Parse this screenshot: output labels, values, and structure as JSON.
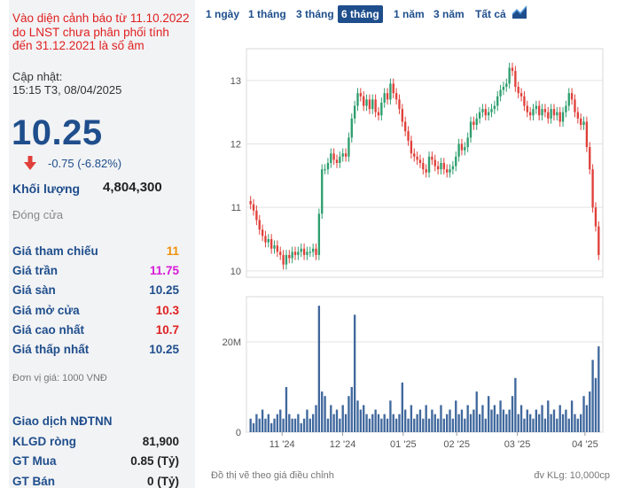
{
  "warning": "Vào diện cảnh báo từ 11.10.2022 do LNST chưa phân phối tính đến 31.12.2021 là số âm",
  "updated_label": "Cập nhật:",
  "updated_time": "15:15 T3, 08/04/2025",
  "price": "10.25",
  "change": "-0.75 (-6.82%)",
  "volume_label": "Khối lượng",
  "volume_value": "4,804,300",
  "status": "Đóng cửa",
  "stats": [
    {
      "label": "Giá tham chiếu",
      "value": "11",
      "color": "#f0900a"
    },
    {
      "label": "Giá trần",
      "value": "11.75",
      "color": "#d81bd8"
    },
    {
      "label": "Giá sàn",
      "value": "10.25",
      "color": "#1f4e8c"
    },
    {
      "label": "Giá mở cửa",
      "value": "10.3",
      "color": "#e02020"
    },
    {
      "label": "Giá cao nhất",
      "value": "10.7",
      "color": "#e02020"
    },
    {
      "label": "Giá thấp nhất",
      "value": "10.25",
      "color": "#1f4e8c"
    }
  ],
  "unit_note": "Đơn vị giá: 1000 VNĐ",
  "foreign": {
    "title": "Giao dịch NĐTNN",
    "rows": [
      {
        "label": "KLGD ròng",
        "value": "81,900"
      },
      {
        "label": "GT Mua",
        "value": "0.85 (Tỷ)"
      },
      {
        "label": "GT Bán",
        "value": "0 (Tỷ)"
      }
    ]
  },
  "tabs": [
    "1 ngày",
    "1 tháng",
    "3 tháng",
    "6 tháng",
    "1 năm",
    "3 năm",
    "Tất cả"
  ],
  "active_tab": "6 tháng",
  "chart_icon": "area-chart-icon",
  "footer_left": "Đồ thị vẽ theo giá điều chỉnh",
  "footer_right": "đv KLg: 10,000cp",
  "colors": {
    "up": "#2e9e6e",
    "down": "#e0403a",
    "accent": "#1f4e8c"
  },
  "chart_data": {
    "type": "candlestick",
    "x_ticks": [
      "11 '24",
      "12 '24",
      "01 '25",
      "02 '25",
      "03 '25",
      "04 '25"
    ],
    "price_ticks": [
      10,
      11,
      12,
      13
    ],
    "price_range": [
      9.9,
      13.5
    ],
    "volume_ticks": [
      "0",
      "20M"
    ],
    "volume_range_million": [
      0,
      30
    ],
    "close": [
      11.05,
      10.95,
      10.8,
      10.65,
      10.55,
      10.45,
      10.5,
      10.35,
      10.4,
      10.3,
      10.25,
      10.1,
      10.25,
      10.2,
      10.3,
      10.25,
      10.3,
      10.35,
      10.25,
      10.3,
      10.3,
      10.35,
      10.25,
      10.9,
      11.6,
      11.6,
      11.7,
      11.85,
      11.75,
      11.7,
      11.8,
      11.85,
      11.8,
      12.1,
      12.4,
      12.6,
      12.8,
      12.75,
      12.6,
      12.7,
      12.55,
      12.7,
      12.5,
      12.45,
      12.65,
      12.8,
      12.7,
      12.95,
      12.8,
      12.7,
      12.55,
      12.35,
      12.2,
      12.05,
      11.85,
      11.8,
      11.75,
      11.7,
      11.6,
      11.55,
      11.8,
      11.75,
      11.65,
      11.6,
      11.7,
      11.6,
      11.55,
      11.6,
      11.65,
      11.8,
      12.0,
      11.9,
      11.95,
      12.1,
      12.35,
      12.3,
      12.4,
      12.5,
      12.55,
      12.45,
      12.5,
      12.55,
      12.6,
      12.75,
      12.85,
      12.9,
      12.95,
      13.2,
      13.15,
      12.9,
      12.8,
      12.75,
      12.6,
      12.5,
      12.45,
      12.55,
      12.6,
      12.45,
      12.55,
      12.5,
      12.4,
      12.55,
      12.45,
      12.5,
      12.35,
      12.5,
      12.6,
      12.8,
      12.7,
      12.5,
      12.4,
      12.3,
      12.35,
      11.95,
      11.6,
      11.0,
      10.7,
      10.25
    ],
    "volume_million": [
      3,
      2,
      4,
      3,
      5,
      3,
      4,
      2,
      3,
      4,
      5,
      3,
      10,
      4,
      3,
      3,
      4,
      2,
      3,
      5,
      3,
      4,
      6,
      28,
      9,
      8,
      3,
      6,
      4,
      5,
      3,
      6,
      4,
      8,
      10,
      26,
      7,
      5,
      6,
      4,
      3,
      4,
      5,
      4,
      3,
      4,
      3,
      7,
      4,
      3,
      4,
      11,
      5,
      3,
      6,
      3,
      4,
      5,
      3,
      6,
      3,
      5,
      4,
      3,
      6,
      3,
      4,
      5,
      3,
      7,
      4,
      5,
      3,
      6,
      4,
      5,
      9,
      4,
      6,
      3,
      8,
      5,
      6,
      4,
      7,
      5,
      4,
      5,
      8,
      12,
      4,
      6,
      3,
      5,
      4,
      3,
      5,
      4,
      6,
      3,
      7,
      4,
      5,
      3,
      6,
      4,
      5,
      3,
      7,
      4,
      3,
      4,
      8,
      6,
      9,
      16,
      12,
      19
    ]
  }
}
